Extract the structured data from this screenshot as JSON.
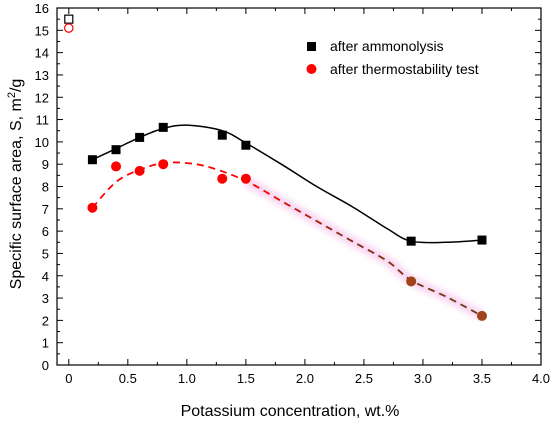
{
  "chart_data": {
    "type": "scatter",
    "xlabel": "Potassium concentration, wt.%",
    "ylabel_prefix": "Specific surface area, S, m",
    "ylabel_sup": "2",
    "ylabel_suffix": "/g",
    "xlim": [
      -0.1,
      4.0
    ],
    "ylim": [
      0,
      16
    ],
    "xticks": [
      "0",
      "0.5",
      "1.0",
      "1.5",
      "2.0",
      "2.5",
      "3.0",
      "3.5",
      "4.0"
    ],
    "xtick_values": [
      0,
      0.5,
      1.0,
      1.5,
      2.0,
      2.5,
      3.0,
      3.5,
      4.0
    ],
    "yticks": [
      "0",
      "1",
      "2",
      "3",
      "4",
      "5",
      "6",
      "7",
      "8",
      "9",
      "10",
      "11",
      "12",
      "13",
      "14",
      "15",
      "16"
    ],
    "ytick_values": [
      0,
      1,
      2,
      3,
      4,
      5,
      6,
      7,
      8,
      9,
      10,
      11,
      12,
      13,
      14,
      15,
      16
    ],
    "grid": false,
    "legend_position": "top-right",
    "series": [
      {
        "name": "after ammonolysis",
        "marker": "square",
        "color": "#000000",
        "x": [
          0.2,
          0.4,
          0.6,
          0.8,
          1.3,
          1.5,
          2.9,
          3.5
        ],
        "y": [
          9.2,
          9.65,
          10.2,
          10.65,
          10.3,
          9.85,
          5.55,
          5.6
        ],
        "curve": {
          "style": "solid",
          "x": [
            0.2,
            0.4,
            0.6,
            0.8,
            1.0,
            1.3,
            1.5,
            1.8,
            2.1,
            2.4,
            2.7,
            2.9,
            3.2,
            3.5
          ],
          "y": [
            9.2,
            9.7,
            10.2,
            10.6,
            10.75,
            10.5,
            9.95,
            9.0,
            8.0,
            7.1,
            6.1,
            5.55,
            5.5,
            5.6
          ]
        }
      },
      {
        "name": "after thermostability test",
        "marker": "circle",
        "color": "#ff0000",
        "x": [
          0.2,
          0.4,
          0.6,
          0.8,
          1.3,
          1.5,
          2.9,
          3.5
        ],
        "y": [
          7.05,
          8.9,
          8.7,
          9.0,
          8.35,
          8.35,
          3.75,
          2.2
        ],
        "curve": {
          "style": "dashed",
          "x": [
            0.2,
            0.4,
            0.6,
            0.8,
            1.0,
            1.2,
            1.5,
            1.8,
            2.1,
            2.4,
            2.7,
            2.9,
            3.2,
            3.5
          ],
          "y": [
            7.05,
            8.2,
            8.75,
            9.05,
            9.05,
            8.85,
            8.25,
            7.35,
            6.45,
            5.55,
            4.65,
            3.8,
            3.05,
            2.2
          ]
        }
      }
    ],
    "extra_points": [
      {
        "marker": "open-square",
        "color": "#000000",
        "x": 0.0,
        "y": 15.5
      },
      {
        "marker": "open-circle",
        "color": "#ff0000",
        "x": 0.0,
        "y": 15.1
      }
    ]
  }
}
